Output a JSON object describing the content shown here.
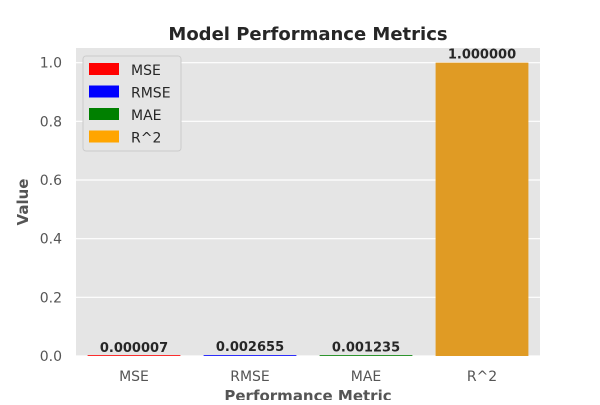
{
  "chart_data": {
    "type": "bar",
    "title": "Model Performance Metrics",
    "xlabel": "Performance Metric",
    "ylabel": "Value",
    "categories": [
      "MSE",
      "RMSE",
      "MAE",
      "R^2"
    ],
    "values": [
      7e-06,
      0.002655,
      0.001235,
      1.0
    ],
    "value_labels": [
      "0.000007",
      "0.002655",
      "0.001235",
      "1.000000"
    ],
    "bar_colors": [
      "#ff0000",
      "#0000ff",
      "#008000",
      "#e09b24"
    ],
    "ylim": [
      0,
      1.05
    ],
    "yticks": [
      0.0,
      0.2,
      0.4,
      0.6,
      0.8,
      1.0
    ],
    "ytick_labels": [
      "0.0",
      "0.2",
      "0.4",
      "0.6",
      "0.8",
      "1.0"
    ],
    "grid": true,
    "legend": {
      "placement": "top-left",
      "entries": [
        {
          "label": "MSE",
          "color": "#ff0000"
        },
        {
          "label": "RMSE",
          "color": "#0000ff"
        },
        {
          "label": "MAE",
          "color": "#008000"
        },
        {
          "label": "R^2",
          "color": "#ffa500"
        }
      ]
    },
    "colors": {
      "plot_background": "#e5e5e5",
      "grid": "#ffffff"
    }
  }
}
